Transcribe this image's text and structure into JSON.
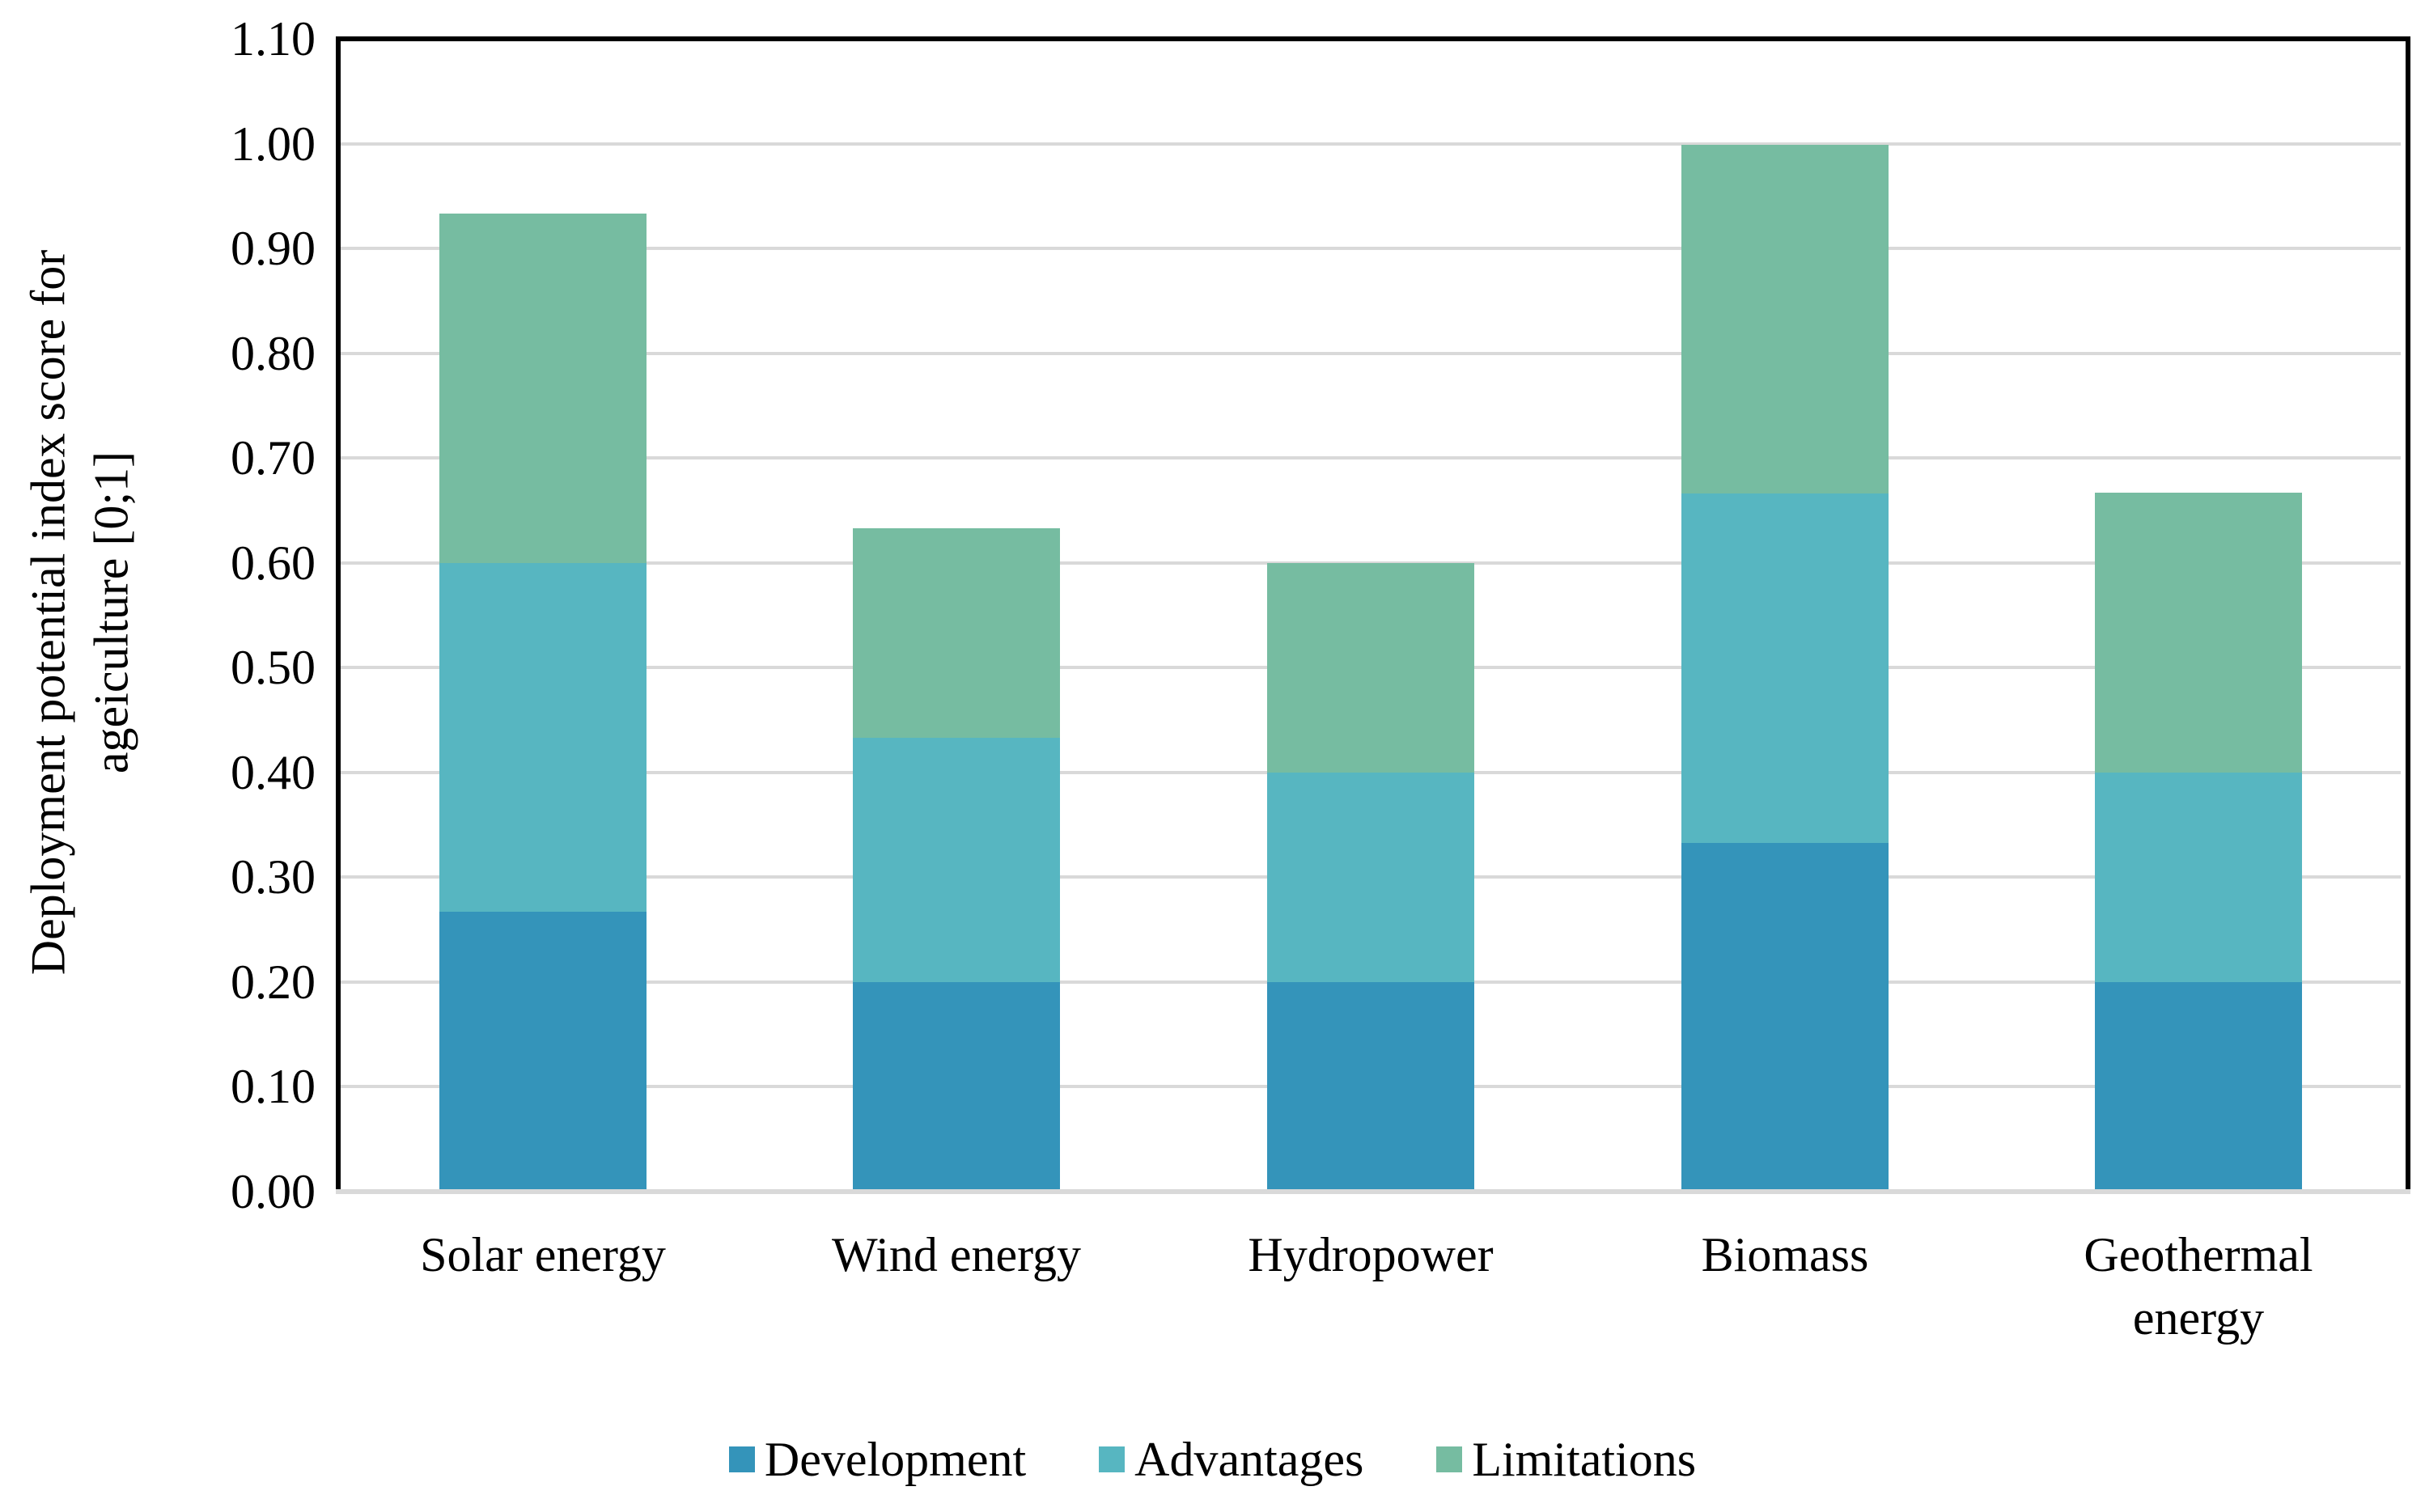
{
  "chart_data": {
    "type": "bar",
    "stacked": true,
    "categories": [
      "Solar energy",
      "Wind energy",
      "Hydropower",
      "Biomass",
      "Geothermal energy"
    ],
    "series": [
      {
        "name": "Development",
        "color": "#3494BA",
        "values": [
          0.267,
          0.2,
          0.2,
          0.333,
          0.2
        ]
      },
      {
        "name": "Advantages",
        "color": "#57B6C1",
        "values": [
          0.333,
          0.233,
          0.2,
          0.333,
          0.2
        ]
      },
      {
        "name": "Limitations",
        "color": "#76BCA1",
        "values": [
          0.333,
          0.2,
          0.2,
          0.333,
          0.267
        ]
      }
    ],
    "stack_tops": [
      0.933,
      0.633,
      0.6,
      1.0,
      0.667
    ],
    "title": "",
    "xlabel": "",
    "ylabel_lines": [
      "Deployment potential index score for",
      "ageiculture [0;1]"
    ],
    "y_axis": {
      "min": 0.0,
      "max": 1.1,
      "step": 0.1,
      "tick_labels": [
        "0.00",
        "0.10",
        "0.20",
        "0.30",
        "0.40",
        "0.50",
        "0.60",
        "0.70",
        "0.80",
        "0.90",
        "1.00",
        "1.10"
      ]
    },
    "grid": true,
    "legend_position": "bottom",
    "colors": {
      "gridline": "#D9D9D9",
      "axis": "#000000",
      "background": "#FFFFFF",
      "text": "#000000"
    }
  }
}
